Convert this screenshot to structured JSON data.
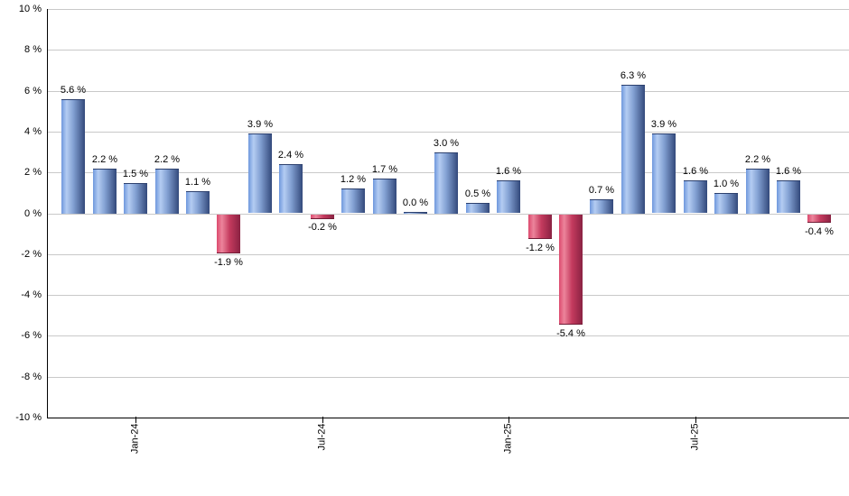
{
  "chart_data": {
    "type": "bar",
    "title": "",
    "xlabel": "",
    "ylabel": "",
    "unit": "%",
    "ylim": [
      -10,
      10
    ],
    "grid": true,
    "legend_position": "none",
    "values": [
      5.6,
      2.2,
      1.5,
      2.2,
      1.1,
      -1.9,
      3.9,
      2.4,
      -0.2,
      1.2,
      1.7,
      0.0,
      3.0,
      0.5,
      1.6,
      -1.2,
      -5.4,
      0.7,
      6.3,
      3.9,
      1.6,
      1.0,
      2.2,
      1.6,
      -0.4
    ],
    "bar_value_labels": [
      "5.6 %",
      "2.2 %",
      "1.5 %",
      "2.2 %",
      "1.1 %",
      "-1.9 %",
      "3.9 %",
      "2.4 %",
      "-0.2 %",
      "1.2 %",
      "1.7 %",
      "0.0 %",
      "3.0 %",
      "0.5 %",
      "1.6 %",
      "-1.2 %",
      "-5.4 %",
      "0.7 %",
      "6.3 %",
      "3.9 %",
      "1.6 %",
      "1.0 %",
      "2.2 %",
      "1.6 %",
      "-0.4 %"
    ],
    "x_axis_ticks": [
      {
        "bar_index": 2,
        "label": "Jan-24"
      },
      {
        "bar_index": 8,
        "label": "Jul-24"
      },
      {
        "bar_index": 14,
        "label": "Jan-25"
      },
      {
        "bar_index": 20,
        "label": "Jul-25"
      }
    ],
    "y_axis_tick_values": [
      10,
      8,
      6,
      4,
      2,
      0,
      -2,
      -4,
      -6,
      -8,
      -10
    ],
    "y_axis_tick_labels": [
      "10 %",
      "8 %",
      "6 %",
      "4 %",
      "2 %",
      "0 %",
      "-2 %",
      "-4 %",
      "-6 %",
      "-8 %",
      "-10 %"
    ],
    "colors": {
      "background": "#ffffff",
      "gridline": "#c9c9c9",
      "axis": "#000000",
      "label_text": "#000000",
      "positive_bar_gradient": [
        "#6f98dd 0%",
        "#b4ccf2 22%",
        "#84a2d4 50%",
        "#33497b 100%"
      ],
      "positive_bar_cap": "#2c406e",
      "negative_bar_gradient": [
        "#dc4a6e 0%",
        "#ec849b 22%",
        "#c43a5e 55%",
        "#8a2242 100%"
      ],
      "negative_bar_cap": "#701c36"
    }
  }
}
